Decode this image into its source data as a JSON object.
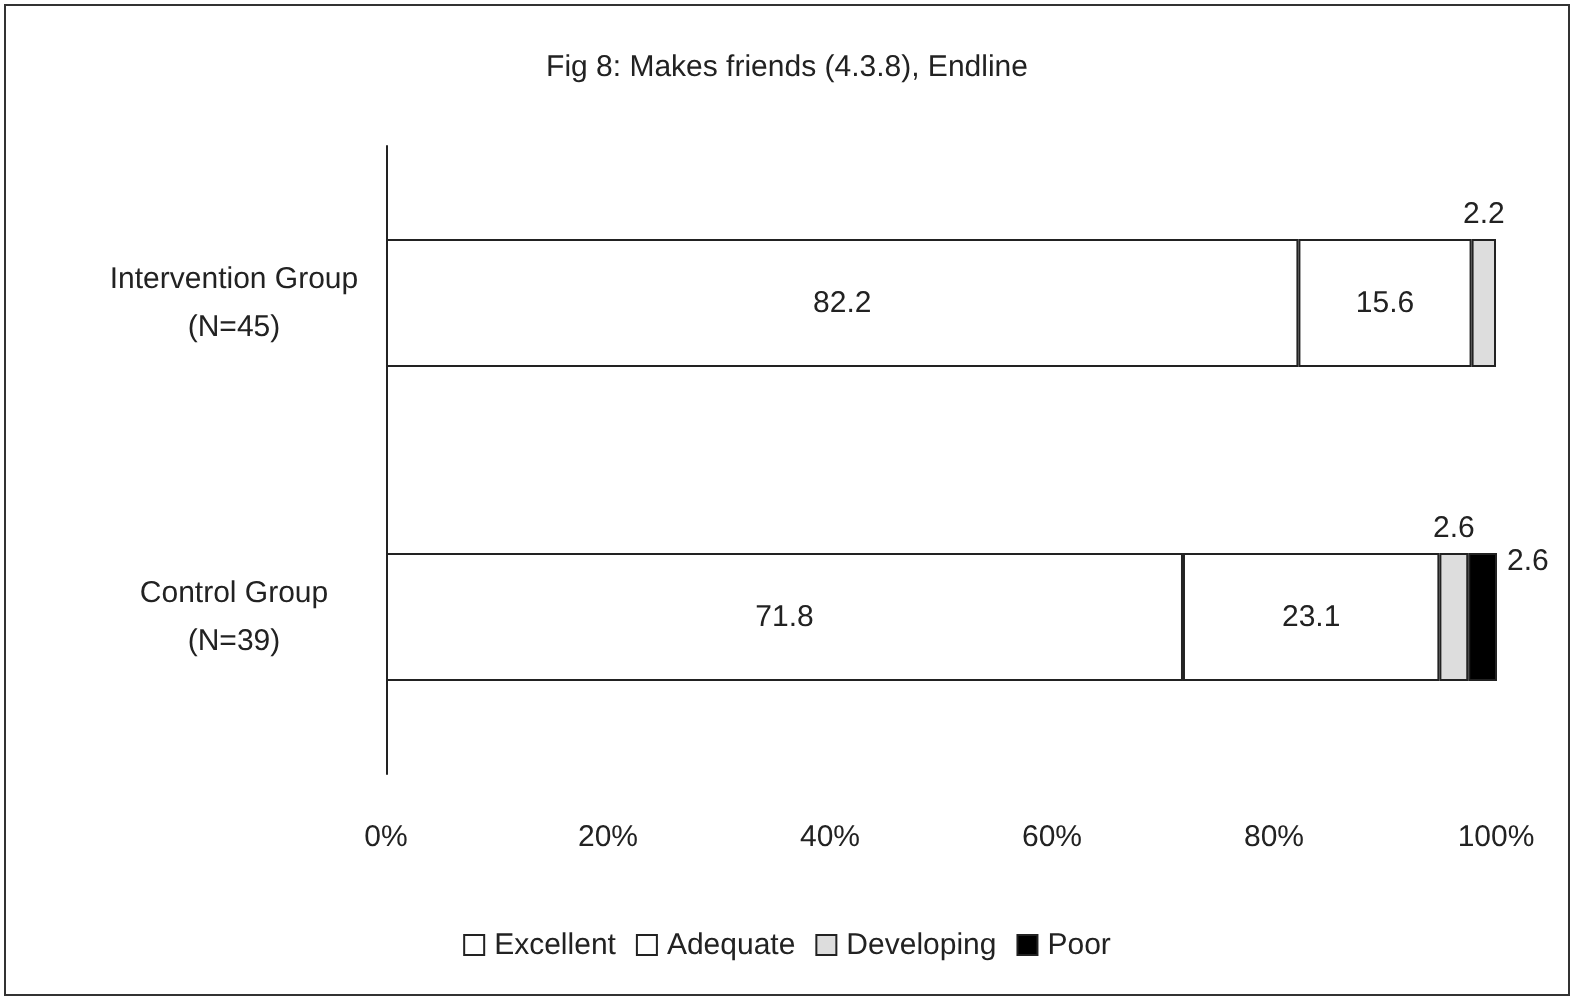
{
  "chart_data": {
    "type": "bar",
    "orientation": "horizontal",
    "stacked": true,
    "title": "Fig 8: Makes friends (4.3.8), Endline",
    "categories": [
      "Intervention Group\n(N=45)",
      "Control Group\n(N=39)"
    ],
    "series": [
      {
        "name": "Excellent",
        "color": "#ffffff",
        "values": [
          82.2,
          71.8
        ],
        "value_labels": [
          "82.2",
          "71.8"
        ]
      },
      {
        "name": "Adequate",
        "color": "#ffffff",
        "values": [
          15.6,
          23.1
        ],
        "value_labels": [
          "15.6",
          "23.1"
        ]
      },
      {
        "name": "Developing",
        "color": "#dddddd",
        "values": [
          2.2,
          2.6
        ],
        "value_labels": [
          "2.2",
          "2.6"
        ]
      },
      {
        "name": "Poor",
        "color": "#000000",
        "values": [
          null,
          2.6
        ],
        "value_labels": [
          null,
          "2.6"
        ]
      }
    ],
    "xlim": [
      0,
      100
    ],
    "xticks": [
      {
        "value": 0,
        "label": "0%"
      },
      {
        "value": 20,
        "label": "20%"
      },
      {
        "value": 40,
        "label": "40%"
      },
      {
        "value": 60,
        "label": "60%"
      },
      {
        "value": 80,
        "label": "80%"
      },
      {
        "value": 100,
        "label": "100%"
      }
    ],
    "grid": false,
    "legend": "bottom"
  }
}
